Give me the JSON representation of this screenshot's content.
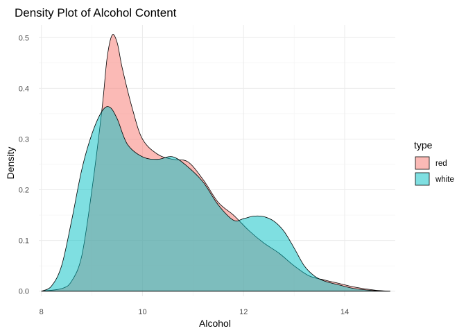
{
  "chart_data": {
    "type": "area",
    "title": "Density Plot of Alcohol Content",
    "xlabel": "Alcohol",
    "ylabel": "Density",
    "xlim": [
      7.95,
      15.0
    ],
    "ylim": [
      -0.01,
      0.525
    ],
    "x_ticks": [
      8,
      10,
      12,
      14
    ],
    "x_tick_labels": [
      "8",
      "10",
      "12",
      "14"
    ],
    "y_ticks": [
      0.0,
      0.1,
      0.2,
      0.3,
      0.4,
      0.5
    ],
    "y_tick_labels": [
      "0.0",
      "0.1",
      "0.2",
      "0.3",
      "0.4",
      "0.5"
    ],
    "grid": true,
    "legend": {
      "title": "type",
      "position": "right"
    },
    "series": [
      {
        "name": "red",
        "color": "#F8766D",
        "opacity": 0.5,
        "x": [
          8.0,
          8.4,
          8.6,
          8.8,
          9.0,
          9.2,
          9.3,
          9.4,
          9.5,
          9.6,
          9.8,
          10.0,
          10.3,
          10.6,
          10.9,
          11.2,
          11.5,
          11.8,
          12.1,
          12.4,
          12.7,
          13.0,
          13.3,
          13.6,
          13.9,
          14.2,
          14.6,
          14.9
        ],
        "values": [
          0.0,
          0.005,
          0.02,
          0.07,
          0.2,
          0.36,
          0.46,
          0.505,
          0.49,
          0.44,
          0.36,
          0.3,
          0.27,
          0.26,
          0.255,
          0.22,
          0.175,
          0.15,
          0.12,
          0.095,
          0.075,
          0.05,
          0.03,
          0.022,
          0.015,
          0.008,
          0.002,
          0.0
        ]
      },
      {
        "name": "white",
        "color": "#00BFC4",
        "opacity": 0.5,
        "x": [
          8.0,
          8.2,
          8.4,
          8.6,
          8.8,
          9.0,
          9.2,
          9.35,
          9.5,
          9.7,
          10.0,
          10.3,
          10.6,
          10.9,
          11.2,
          11.5,
          11.8,
          12.0,
          12.2,
          12.4,
          12.6,
          12.8,
          13.0,
          13.2,
          13.4,
          13.6,
          13.9,
          14.2,
          14.6,
          14.9
        ],
        "values": [
          0.0,
          0.01,
          0.05,
          0.14,
          0.24,
          0.31,
          0.355,
          0.363,
          0.34,
          0.29,
          0.265,
          0.26,
          0.265,
          0.245,
          0.215,
          0.17,
          0.14,
          0.143,
          0.148,
          0.147,
          0.138,
          0.118,
          0.085,
          0.05,
          0.03,
          0.02,
          0.012,
          0.005,
          0.001,
          0.0
        ]
      }
    ]
  }
}
